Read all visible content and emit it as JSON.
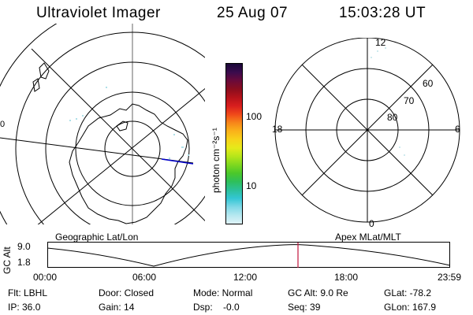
{
  "header": {
    "instrument": "Ultraviolet Imager",
    "date": "25 Aug 07",
    "time": "15:03:28 UT"
  },
  "colorbar": {
    "label": "photon cm⁻²s⁻¹",
    "ticks": [
      "100",
      "10"
    ],
    "colors": [
      "#1a0838",
      "#3a0b4d",
      "#6a0a3a",
      "#8b0d1e",
      "#b5121a",
      "#d81e1e",
      "#f0481a",
      "#f7861a",
      "#fab21a",
      "#f7d31a",
      "#e6ea1a",
      "#b6e61a",
      "#7fd81f",
      "#4bc82a",
      "#2ebf5a",
      "#2cc09a",
      "#33c6d4",
      "#7fd8e6",
      "#b5e8f0",
      "#dff2f7"
    ]
  },
  "left_plot": {
    "caption": "Geographic Lat/Lon",
    "edge_label": "0"
  },
  "right_plot": {
    "caption": "Apex MLat/MLT",
    "mlt_labels": {
      "top": "12",
      "left": "18",
      "right": "6",
      "bottom": "0"
    },
    "lat_labels": [
      "60",
      "70",
      "80"
    ]
  },
  "timeline": {
    "ylabel": "GC Alt",
    "yticks": [
      "9.0",
      "1.8"
    ],
    "xticks": [
      "00:00",
      "06:00",
      "12:00",
      "18:00",
      "23:59"
    ],
    "marker_color": "#c0143c"
  },
  "info": {
    "filter": "Flt: LBHL",
    "ip": "IP: 36.0",
    "door": "Door: Closed",
    "gain": "Gain: 14",
    "mode": "Mode: Normal",
    "dsp": "Dsp:    -0.0",
    "gc_alt": "GC Alt: 9.0 Re",
    "seq": "Seq: 39",
    "glat": "GLat: -78.2",
    "glon": "GLon: 167.9"
  }
}
